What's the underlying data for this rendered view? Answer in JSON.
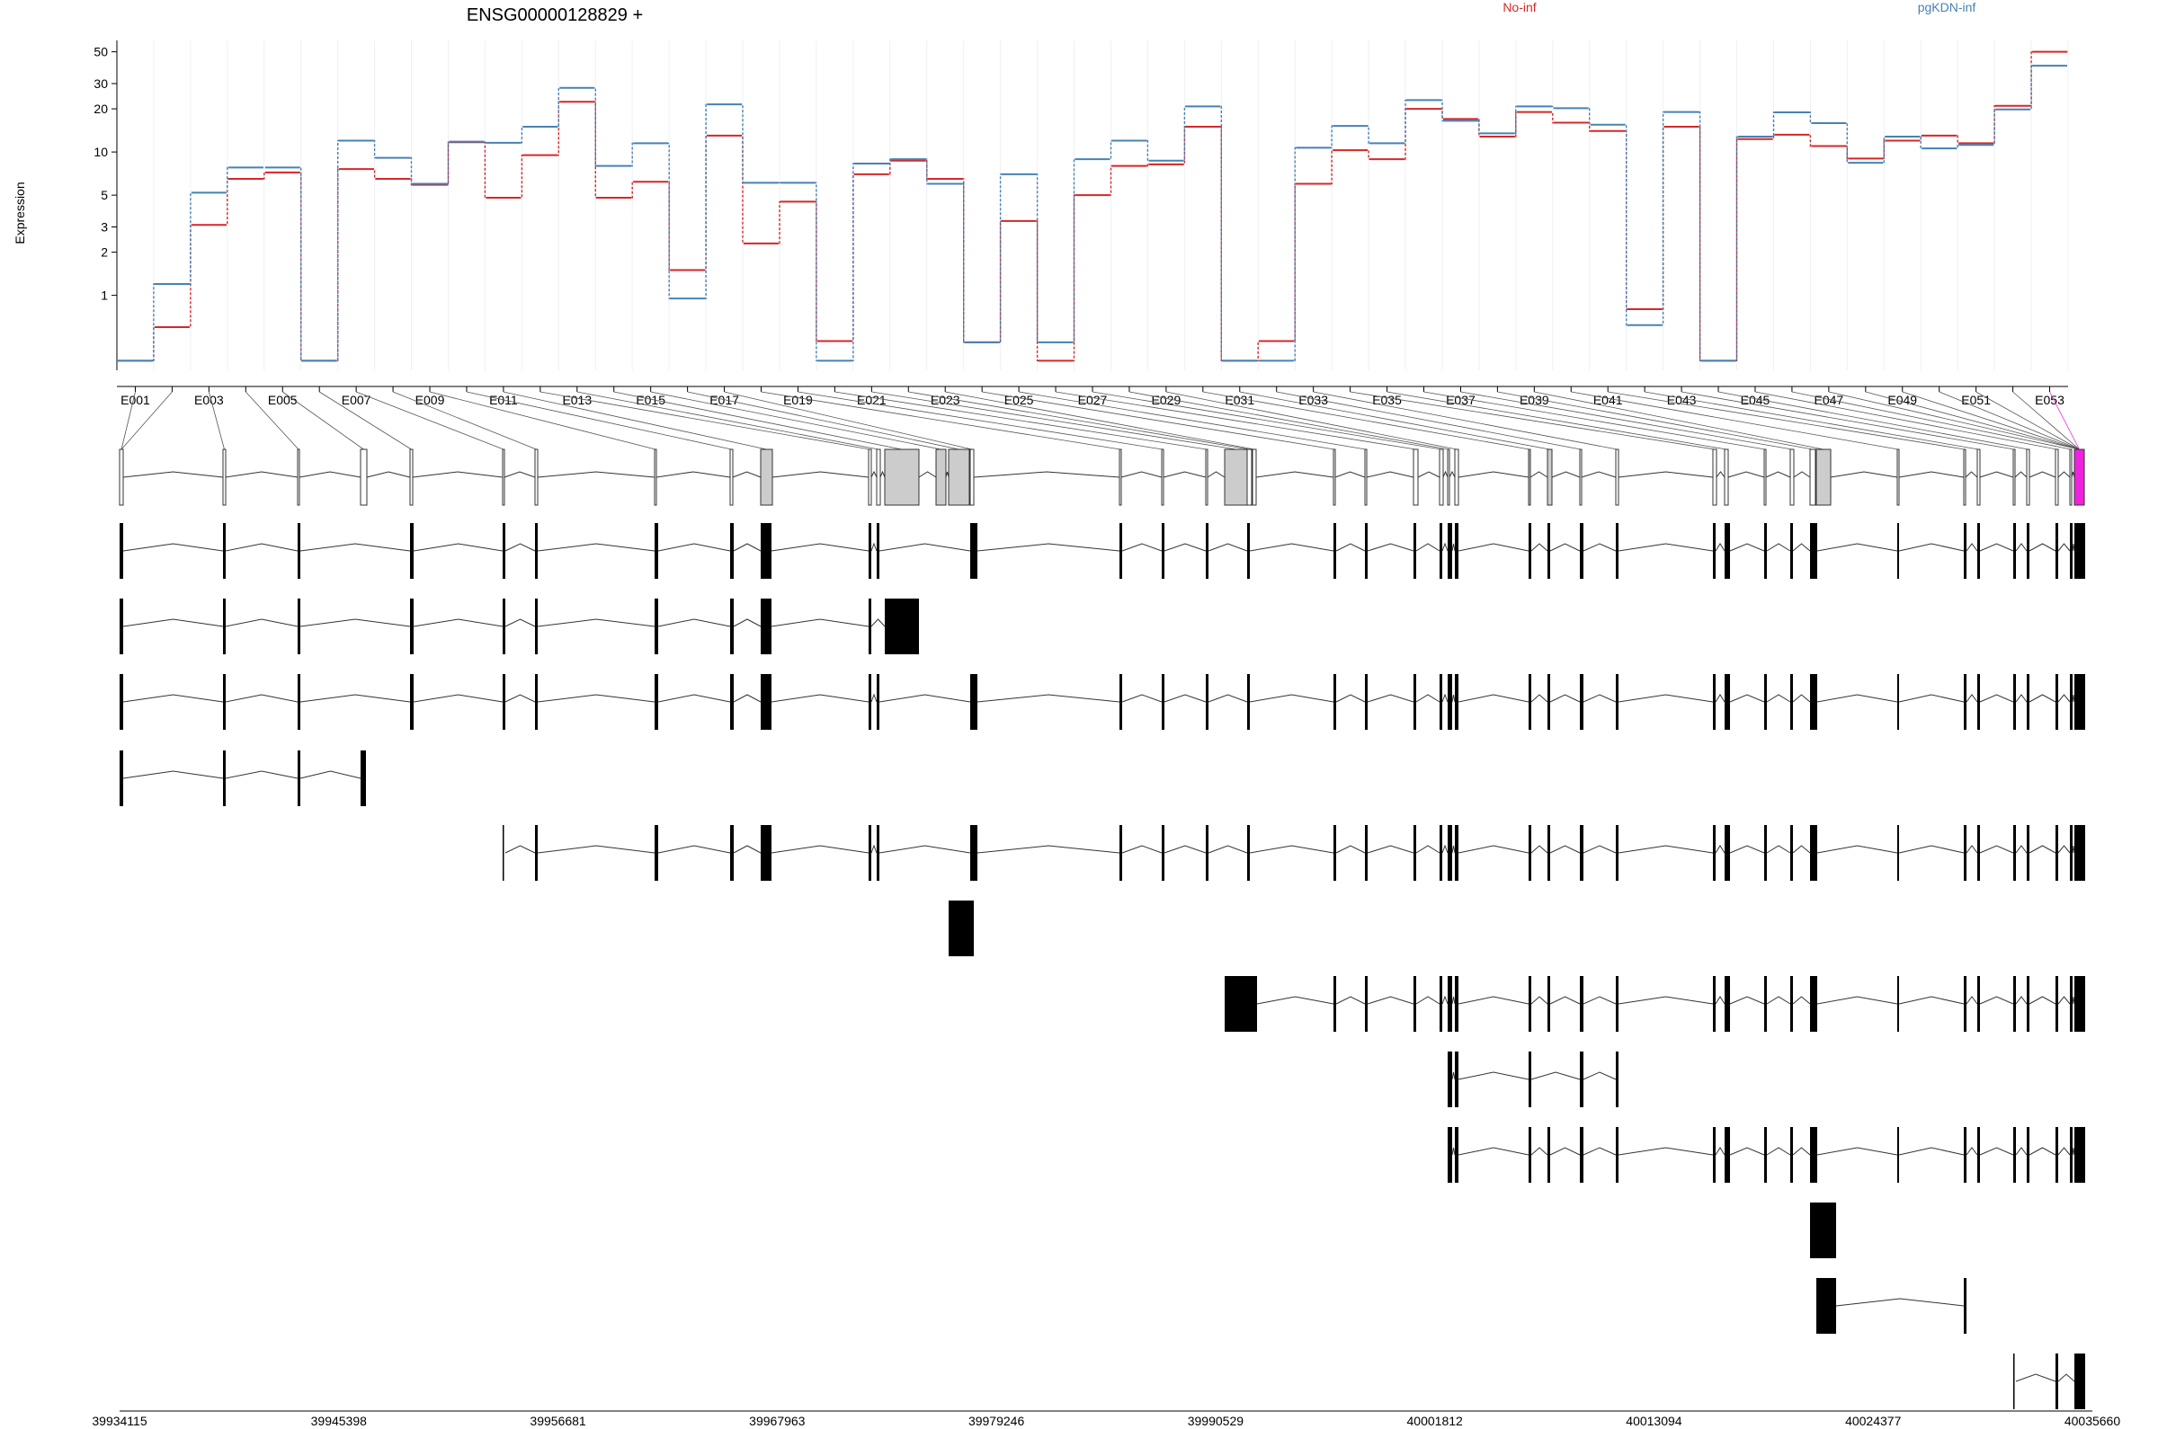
{
  "chart_data": {
    "type": "line",
    "title": "ENSG00000128829 +",
    "ylabel": "Expression",
    "xlabel": "",
    "y_scale": "log",
    "ylim": [
      0.3,
      60
    ],
    "y_ticks": [
      1,
      2,
      3,
      5,
      10,
      20,
      30,
      50
    ],
    "y_tick_labels": [
      "1",
      "2",
      "3",
      "5",
      "10",
      "20",
      "30",
      "50"
    ],
    "exon_labels": [
      "E001",
      "E003",
      "E005",
      "E007",
      "E009",
      "E011",
      "E013",
      "E015",
      "E017",
      "E019",
      "E021",
      "E023",
      "E025",
      "E027",
      "E029",
      "E031",
      "E033",
      "E035",
      "E037",
      "E039",
      "E041",
      "E043",
      "E045",
      "E047",
      "E049",
      "E051",
      "E053"
    ],
    "series": [
      {
        "name": "No-inf",
        "color": "#d62728",
        "values": [
          0.35,
          0.6,
          3.1,
          6.5,
          7.2,
          0.35,
          7.6,
          6.5,
          5.9,
          11.7,
          4.8,
          9.5,
          22.4,
          4.8,
          6.2,
          1.5,
          13,
          2.3,
          4.5,
          0.48,
          7,
          8.7,
          6.5,
          0.47,
          3.3,
          0.35,
          5,
          8,
          8.2,
          15,
          0.35,
          0.48,
          6,
          10.3,
          8.9,
          20,
          17,
          12.8,
          19,
          16,
          14,
          0.8,
          15,
          0.35,
          12.3,
          13.2,
          11,
          9,
          12,
          13,
          11.5,
          21,
          50
        ]
      },
      {
        "name": "pgKDN-inf",
        "color": "#4682b4",
        "values": [
          0.35,
          1.2,
          5.2,
          7.8,
          7.8,
          0.35,
          12,
          9.1,
          6,
          11.8,
          11.6,
          15,
          28,
          8,
          11.5,
          0.95,
          21.5,
          6.1,
          6.1,
          0.35,
          8.3,
          8.9,
          6,
          0.47,
          7,
          0.47,
          8.9,
          12,
          8.7,
          20.8,
          0.35,
          0.35,
          10.7,
          15.2,
          11.5,
          23,
          16.5,
          13.5,
          20.8,
          20.2,
          15.5,
          0.62,
          19,
          0.35,
          12.8,
          18.9,
          15.9,
          8.4,
          12.8,
          10.6,
          11.2,
          19.8,
          40
        ]
      }
    ],
    "genome_ticks": [
      "39934115",
      "39945398",
      "39956681",
      "39967963",
      "39979246",
      "39990529",
      "40001812",
      "40013094",
      "40024377",
      "40035660"
    ],
    "genome_range": [
      39934115,
      40035660
    ],
    "highlight_exon": "E053",
    "highlight_color": "#ee22dd",
    "grid": true,
    "legend": "top-right"
  }
}
